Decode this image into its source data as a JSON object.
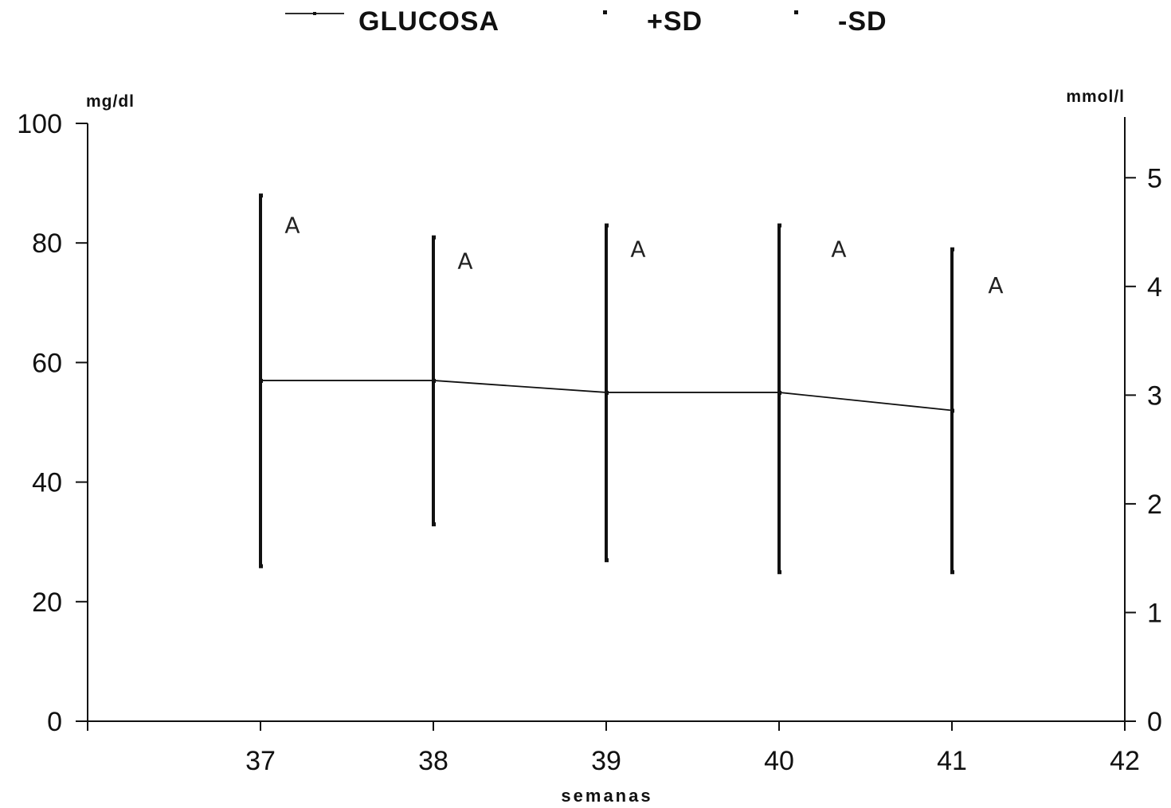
{
  "chart_data": {
    "type": "line",
    "legend": {
      "position": "top",
      "entries": [
        {
          "label": "GLUCOSA",
          "symbol": "line-with-dot"
        },
        {
          "label": "+SD",
          "symbol": "dot"
        },
        {
          "label": "-SD",
          "symbol": "dot"
        }
      ]
    },
    "xlabel": "semanas",
    "ylabel_left": "mg/dl",
    "ylabel_right": "mmol/l",
    "xlim": [
      36,
      42
    ],
    "ylim": [
      0,
      100
    ],
    "y2lim": [
      0,
      5.5
    ],
    "x_ticks": [
      37,
      38,
      39,
      40,
      41,
      42
    ],
    "y_ticks": [
      0,
      20,
      40,
      60,
      80,
      100
    ],
    "y2_ticks": [
      0,
      1,
      2,
      3,
      4,
      5
    ],
    "grid": false,
    "x": [
      37,
      38,
      39,
      40,
      41
    ],
    "series": [
      {
        "name": "GLUCOSA",
        "values": [
          57,
          57,
          55,
          55,
          52
        ]
      },
      {
        "name": "+SD",
        "values": [
          88,
          81,
          83,
          83,
          79
        ]
      },
      {
        "name": "-SD",
        "values": [
          26,
          33,
          27,
          25,
          25
        ]
      }
    ],
    "annotations": [
      "A",
      "A",
      "A",
      "A",
      "A"
    ],
    "annotation_y": [
      83,
      77,
      79,
      79,
      73
    ]
  }
}
